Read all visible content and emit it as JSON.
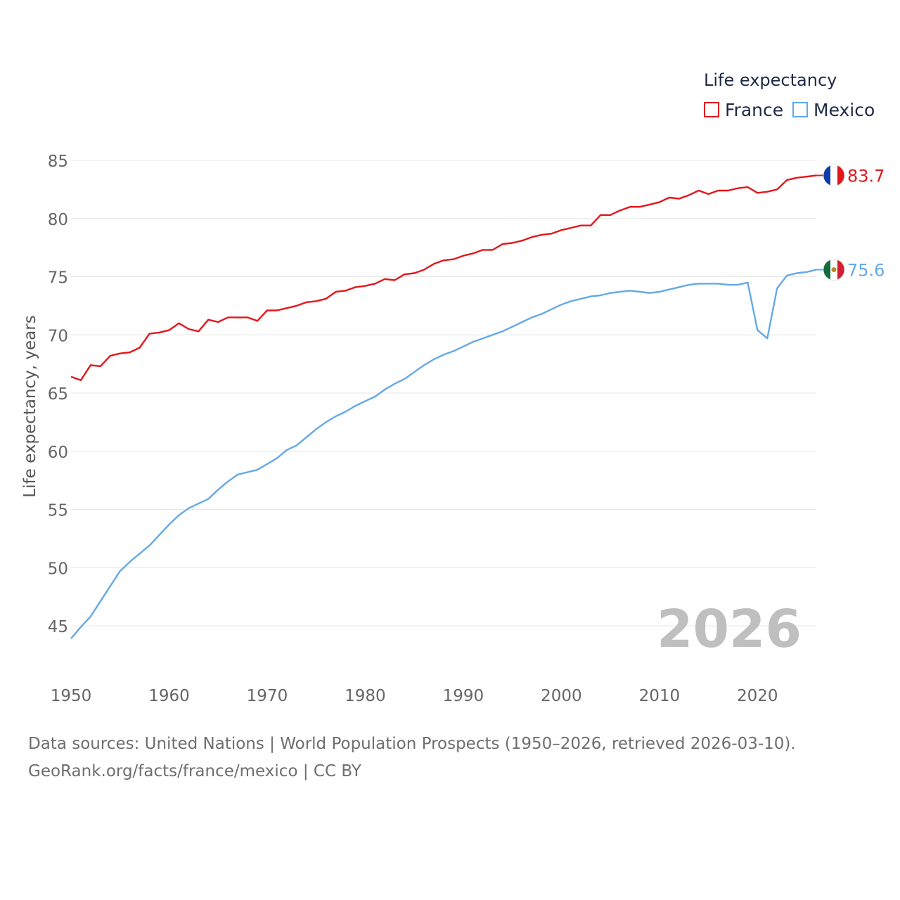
{
  "chart_data": {
    "type": "line",
    "legend": {
      "title": "Life expectancy",
      "position": "top-right"
    },
    "ylabel": "Life expectancy, years",
    "xlabel": "",
    "ylim": [
      42.5,
      86
    ],
    "xlim": [
      1950,
      2026
    ],
    "yticks": [
      "45",
      "50",
      "55",
      "60",
      "65",
      "70",
      "75",
      "80",
      "85"
    ],
    "xticks": [
      "1950",
      "1960",
      "1970",
      "1980",
      "1990",
      "2000",
      "2010",
      "2020"
    ],
    "year_label": "2026",
    "x": [
      1950,
      1951,
      1952,
      1953,
      1954,
      1955,
      1956,
      1957,
      1958,
      1959,
      1960,
      1961,
      1962,
      1963,
      1964,
      1965,
      1966,
      1967,
      1968,
      1969,
      1970,
      1971,
      1972,
      1973,
      1974,
      1975,
      1976,
      1977,
      1978,
      1979,
      1980,
      1981,
      1982,
      1983,
      1984,
      1985,
      1986,
      1987,
      1988,
      1989,
      1990,
      1991,
      1992,
      1993,
      1994,
      1995,
      1996,
      1997,
      1998,
      1999,
      2000,
      2001,
      2002,
      2003,
      2004,
      2005,
      2006,
      2007,
      2008,
      2009,
      2010,
      2011,
      2012,
      2013,
      2014,
      2015,
      2016,
      2017,
      2018,
      2019,
      2020,
      2021,
      2022,
      2023,
      2024,
      2025,
      2026
    ],
    "series": [
      {
        "name": "France",
        "color": "#e4161c",
        "end_label": "83.7",
        "flag": "france-flag-icon",
        "values": [
          66.4,
          66.1,
          67.4,
          67.3,
          68.2,
          68.4,
          68.5,
          68.9,
          70.1,
          70.2,
          70.4,
          71.0,
          70.5,
          70.3,
          71.3,
          71.1,
          71.5,
          71.5,
          71.5,
          71.2,
          72.1,
          72.1,
          72.3,
          72.5,
          72.8,
          72.9,
          73.1,
          73.7,
          73.8,
          74.1,
          74.2,
          74.4,
          74.8,
          74.7,
          75.2,
          75.3,
          75.6,
          76.1,
          76.4,
          76.5,
          76.8,
          77.0,
          77.3,
          77.3,
          77.8,
          77.9,
          78.1,
          78.4,
          78.6,
          78.7,
          79.0,
          79.2,
          79.4,
          79.4,
          80.3,
          80.3,
          80.7,
          81.0,
          81.0,
          81.2,
          81.4,
          81.8,
          81.7,
          82.0,
          82.4,
          82.1,
          82.4,
          82.4,
          82.6,
          82.7,
          82.2,
          82.3,
          82.5,
          83.3,
          83.5,
          83.6,
          83.7
        ]
      },
      {
        "name": "Mexico",
        "color": "#64a9e6",
        "end_label": "75.6",
        "flag": "mexico-flag-icon",
        "values": [
          43.9,
          44.9,
          45.8,
          47.1,
          48.4,
          49.7,
          50.5,
          51.2,
          51.9,
          52.8,
          53.7,
          54.5,
          55.1,
          55.5,
          55.9,
          56.7,
          57.4,
          58.0,
          58.2,
          58.4,
          58.9,
          59.4,
          60.1,
          60.5,
          61.2,
          61.9,
          62.5,
          63.0,
          63.4,
          63.9,
          64.3,
          64.7,
          65.3,
          65.8,
          66.2,
          66.8,
          67.4,
          67.9,
          68.3,
          68.6,
          69.0,
          69.4,
          69.7,
          70.0,
          70.3,
          70.7,
          71.1,
          71.5,
          71.8,
          72.2,
          72.6,
          72.9,
          73.1,
          73.3,
          73.4,
          73.6,
          73.7,
          73.8,
          73.7,
          73.6,
          73.7,
          73.9,
          74.1,
          74.3,
          74.4,
          74.4,
          74.4,
          74.3,
          74.3,
          74.5,
          70.4,
          69.7,
          74.0,
          75.1,
          75.3,
          75.4,
          75.6
        ]
      }
    ]
  },
  "footer": {
    "line1": "Data sources: United Nations | World Population Prospects (1950–2026, retrieved 2026-03-10).",
    "line2": "GeoRank.org/facts/france/mexico | CC BY"
  }
}
